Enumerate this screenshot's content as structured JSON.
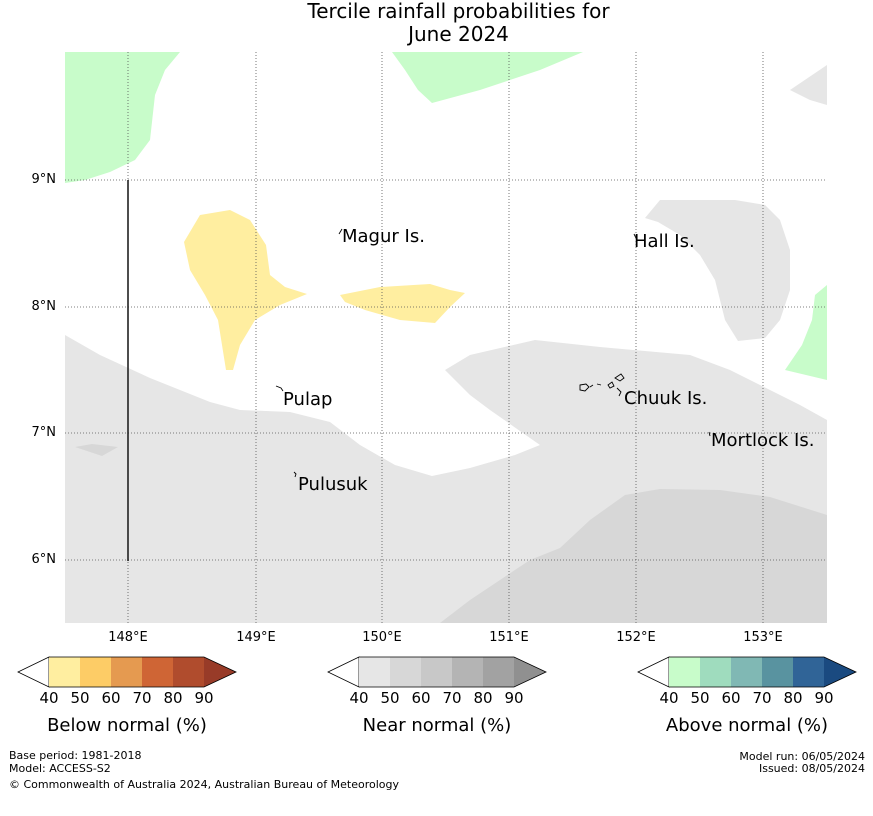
{
  "title": {
    "line1": "Tercile rainfall probabilities for",
    "line2": "June 2024"
  },
  "map": {
    "lat_labels": [
      "9°N",
      "8°N",
      "7°N",
      "6°N"
    ],
    "lon_labels": [
      "148°E",
      "149°E",
      "150°E",
      "151°E",
      "152°E",
      "153°E"
    ],
    "places": [
      "Magur Is.",
      "Hall Is.",
      "Pulap",
      "Chuuk Is.",
      "Mortlock Is.",
      "Pulusuk"
    ]
  },
  "legends": [
    {
      "caption": "Below normal (%)",
      "ticks": [
        "40",
        "50",
        "60",
        "70",
        "80",
        "90"
      ],
      "colors": [
        "#ffeea0",
        "#fdcc66",
        "#e59a50",
        "#cf6535",
        "#b04c2d",
        "#983b28"
      ]
    },
    {
      "caption": "Near normal (%)",
      "ticks": [
        "40",
        "50",
        "60",
        "70",
        "80",
        "90"
      ],
      "colors": [
        "#e6e6e6",
        "#d7d7d7",
        "#c8c8c8",
        "#b4b4b4",
        "#a2a2a2",
        "#909090"
      ]
    },
    {
      "caption": "Above normal (%)",
      "ticks": [
        "40",
        "50",
        "60",
        "70",
        "80",
        "90"
      ],
      "colors": [
        "#c8fcca",
        "#9fdcbe",
        "#80b8b4",
        "#5993a0",
        "#306497",
        "#1a4a80"
      ]
    }
  ],
  "footer": {
    "base_period": "Base period: 1981-2018",
    "model": "Model: ACCESS-S2",
    "copyright": "© Commonwealth of Australia 2024, Australian Bureau of Meteorology",
    "model_run": "Model run: 06/05/2024",
    "issued": "Issued: 08/05/2024"
  }
}
